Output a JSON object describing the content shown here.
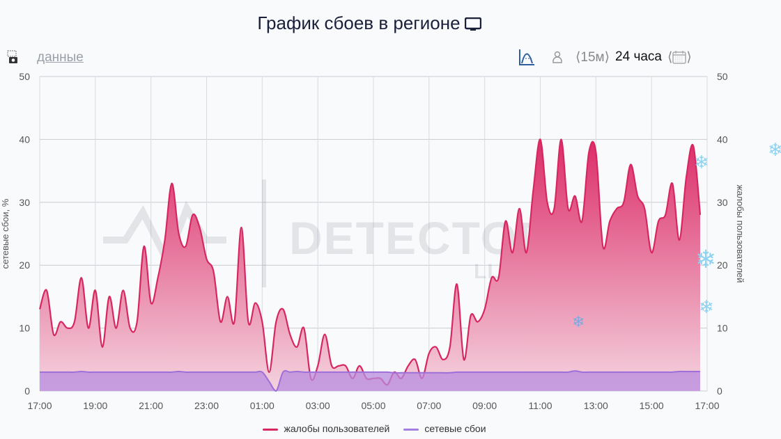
{
  "title": "График сбоев в регионе",
  "title_icon": "monitor-icon",
  "toolbar": {
    "data_link": "данные",
    "interval": "15м",
    "period": "24 часа",
    "icons": [
      "camera-icon",
      "area-chart-icon",
      "user-icon",
      "chevron-left-icon",
      "chevron-right-icon",
      "calendar-icon"
    ],
    "accent": "#2e5e9e"
  },
  "watermark": {
    "brand": "DETECTOR404",
    "sub": "LLM POWERED"
  },
  "legend": [
    {
      "label": "жалобы пользователей",
      "color": "#d6275f"
    },
    {
      "label": "сетевые сбои",
      "color": "#a27fe0"
    }
  ],
  "chart_data": {
    "type": "area",
    "title": "График сбоев в регионе",
    "ylabel_left": "сетевые сбои, %",
    "ylabel_right": "жалобы пользователей",
    "ylim": [
      0,
      50
    ],
    "yticks": [
      0,
      10,
      20,
      30,
      40,
      50
    ],
    "xticks": [
      "17:00",
      "19:00",
      "21:00",
      "23:00",
      "01:00",
      "03:00",
      "05:00",
      "07:00",
      "09:00",
      "11:00",
      "13:00",
      "15:00",
      "17:00"
    ],
    "grid": true,
    "legend_position": "bottom",
    "x": [
      "17:00",
      "17:15",
      "17:30",
      "17:45",
      "18:00",
      "18:15",
      "18:30",
      "18:45",
      "19:00",
      "19:15",
      "19:30",
      "19:45",
      "20:00",
      "20:15",
      "20:30",
      "20:45",
      "21:00",
      "21:15",
      "21:30",
      "21:45",
      "22:00",
      "22:15",
      "22:30",
      "22:45",
      "23:00",
      "23:15",
      "23:30",
      "23:45",
      "00:00",
      "00:15",
      "00:30",
      "00:45",
      "01:00",
      "01:15",
      "01:30",
      "01:45",
      "02:00",
      "02:15",
      "02:30",
      "02:45",
      "03:00",
      "03:15",
      "03:30",
      "03:45",
      "04:00",
      "04:15",
      "04:30",
      "04:45",
      "05:00",
      "05:15",
      "05:30",
      "05:45",
      "06:00",
      "06:15",
      "06:30",
      "06:45",
      "07:00",
      "07:15",
      "07:30",
      "07:45",
      "08:00",
      "08:15",
      "08:30",
      "08:45",
      "09:00",
      "09:15",
      "09:30",
      "09:45",
      "10:00",
      "10:15",
      "10:30",
      "10:45",
      "11:00",
      "11:15",
      "11:30",
      "11:45",
      "12:00",
      "12:15",
      "12:30",
      "12:45",
      "13:00",
      "13:15",
      "13:30",
      "13:45",
      "14:00",
      "14:15",
      "14:30",
      "14:45",
      "15:00",
      "15:15",
      "15:30",
      "15:45",
      "16:00",
      "16:15",
      "16:30",
      "16:45"
    ],
    "series": [
      {
        "name": "жалобы пользователей",
        "axis": "right",
        "color": "#d6275f",
        "values": [
          13,
          16,
          9,
          11,
          10,
          11,
          18,
          10,
          16,
          7,
          15,
          10,
          16,
          10,
          11,
          23,
          14,
          18,
          24,
          33,
          25,
          23,
          28,
          26,
          21,
          19,
          11,
          15,
          11,
          26,
          11,
          14,
          11,
          3,
          11,
          13,
          9,
          7,
          10,
          2,
          4,
          9,
          4,
          4,
          4,
          2,
          4,
          2,
          2,
          2,
          1,
          3,
          2,
          4,
          5,
          2,
          6,
          7,
          5,
          7,
          17,
          5,
          12,
          11,
          13,
          18,
          18,
          27,
          22,
          29,
          22,
          32,
          40,
          30,
          29,
          40,
          29,
          31,
          27,
          38,
          38,
          23,
          27,
          29,
          30,
          36,
          31,
          29,
          22,
          27,
          28,
          33,
          24,
          34,
          39,
          28
        ]
      },
      {
        "name": "сетевые сбои",
        "axis": "left",
        "color": "#a27fe0",
        "values": [
          3,
          3,
          3,
          3,
          3,
          3,
          3.1,
          3,
          3,
          3,
          3,
          3,
          3,
          3,
          3,
          3,
          3,
          3,
          3,
          3,
          3.1,
          3,
          3,
          3,
          3,
          3,
          3,
          3,
          3,
          3,
          3,
          3,
          3,
          1.5,
          0,
          3,
          3,
          3.1,
          3,
          3,
          3,
          3,
          3,
          3,
          3,
          3,
          3,
          3,
          3,
          3,
          3,
          2.9,
          2.9,
          2.9,
          2.9,
          2.9,
          2.9,
          2.9,
          2.9,
          2.9,
          3,
          3,
          3,
          3,
          3,
          3,
          3,
          3,
          3,
          3,
          3,
          3,
          3,
          3,
          3,
          3,
          3,
          3.2,
          3,
          3,
          3,
          3,
          3,
          3,
          3,
          3,
          3,
          3,
          3,
          3,
          3,
          3,
          3.1,
          3.1,
          3.1,
          3.1
        ]
      }
    ]
  }
}
